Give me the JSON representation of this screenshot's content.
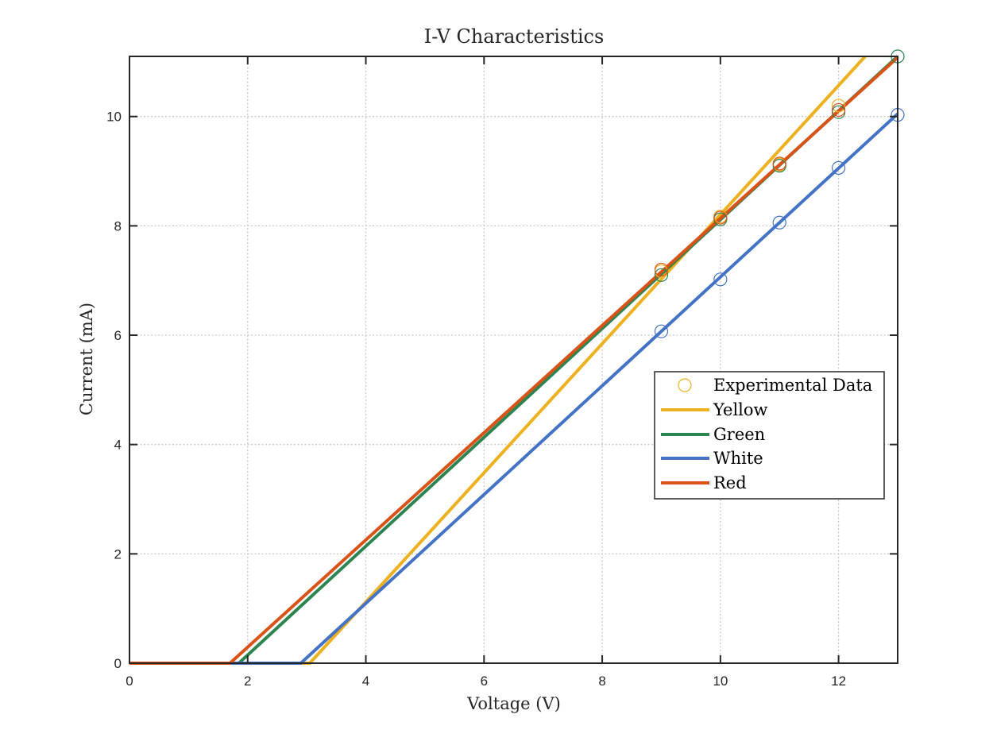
{
  "chart_data": {
    "type": "line",
    "title": "I-V Characteristics",
    "xlabel": "Voltage (V)",
    "ylabel": "Current (mA)",
    "xlim": [
      0,
      13
    ],
    "ylim": [
      0,
      11.1
    ],
    "xticks": [
      0,
      2,
      4,
      6,
      8,
      10,
      12
    ],
    "yticks": [
      0,
      2,
      4,
      6,
      8,
      10
    ],
    "grid": true,
    "legend_position": "right-center",
    "legend": [
      "Experimental Data",
      "Yellow",
      "Green",
      "White",
      "Red"
    ],
    "series": [
      {
        "name": "Yellow",
        "color": "#EDB120",
        "fit": {
          "x": [
            0,
            3.05,
            12.45
          ],
          "y": [
            0,
            0,
            11.1
          ]
        },
        "points": {
          "x": [
            9,
            10,
            11,
            12
          ],
          "y": [
            7.17,
            8.17,
            9.12,
            10.2
          ]
        }
      },
      {
        "name": "Green",
        "color": "#2C8451",
        "fit": {
          "x": [
            0,
            1.85,
            13
          ],
          "y": [
            0,
            0,
            11.1
          ]
        },
        "points": {
          "x": [
            9,
            10,
            11,
            12,
            13
          ],
          "y": [
            7.1,
            8.12,
            9.1,
            10.08,
            11.1
          ]
        }
      },
      {
        "name": "White",
        "color": "#4472C4",
        "fit": {
          "x": [
            0,
            2.9,
            13
          ],
          "y": [
            0,
            0,
            10.05
          ]
        },
        "points": {
          "x": [
            9,
            10,
            11,
            12,
            13
          ],
          "y": [
            6.07,
            7.02,
            8.06,
            9.06,
            10.03
          ]
        }
      },
      {
        "name": "Red",
        "color": "#D95319",
        "fit": {
          "x": [
            0,
            1.7,
            13
          ],
          "y": [
            0,
            0,
            11.08
          ]
        },
        "points": {
          "x": [
            9,
            10,
            11,
            12
          ],
          "y": [
            7.2,
            8.15,
            9.14,
            10.12
          ]
        }
      }
    ]
  }
}
